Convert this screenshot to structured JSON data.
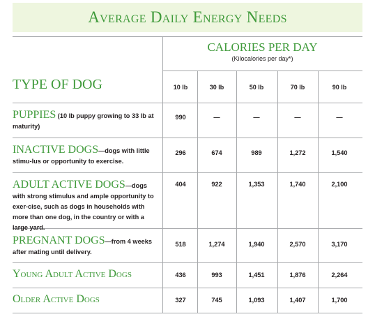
{
  "title": "Average Daily Energy Needs",
  "calories_header": {
    "title": "CALORIES PER DAY",
    "subtitle": "(Kilocalories per day*)"
  },
  "type_header": "TYPE OF DOG",
  "weights": [
    "10 lb",
    "30 lb",
    "50 lb",
    "70 lb",
    "90 lb"
  ],
  "rows": [
    {
      "name": "PUPPIES",
      "desc": " (10 lb puppy growing to 33 lb at maturity)",
      "values": [
        "990",
        "—",
        "—",
        "—",
        "—"
      ]
    },
    {
      "name": "INACTIVE DOGS",
      "desc": "—dogs with little stimu-lus or opportunity to exercise.",
      "values": [
        "296",
        "674",
        "989",
        "1,272",
        "1,540"
      ]
    },
    {
      "name": "ADULT ACTIVE DOGS",
      "desc": "—dogs with strong stimulus and ample opportunity to exer-cise, such as dogs in households with more than one dog, in the country or with a large yard.",
      "values": [
        "404",
        "922",
        "1,353",
        "1,740",
        "2,100"
      ]
    },
    {
      "name": "PREGNANT DOGS",
      "desc": "—from 4 weeks after mating until delivery.",
      "values": [
        "518",
        "1,274",
        "1,940",
        "2,570",
        "3,170"
      ]
    },
    {
      "name": "Young Adult Active Dogs",
      "desc": "",
      "values": [
        "436",
        "993",
        "1,451",
        "1,876",
        "2,264"
      ]
    },
    {
      "name": "Older Active Dogs",
      "desc": "",
      "values": [
        "327",
        "745",
        "1,093",
        "1,407",
        "1,700"
      ]
    }
  ]
}
